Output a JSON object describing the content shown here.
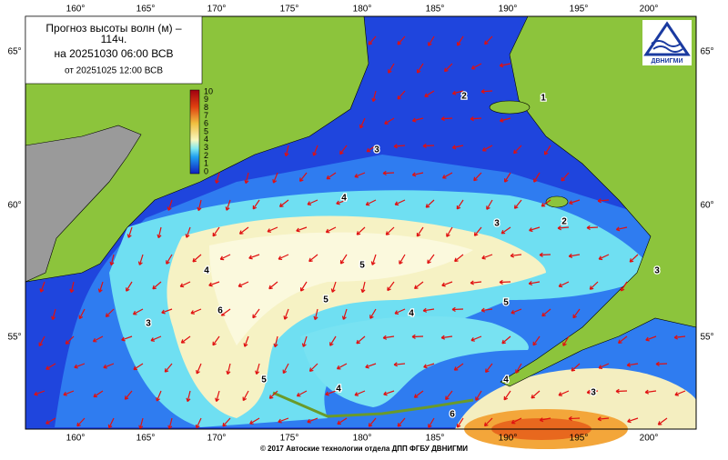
{
  "header": {
    "title_lines": [
      "Прогноз высоты волн (м) –",
      "114ч.",
      "на 20251030 06:00 ВСВ",
      "от 20251025 12:00 ВСВ"
    ]
  },
  "legend": {
    "ticks": [
      "10",
      "9",
      "8",
      "7",
      "6",
      "5",
      "4",
      "3",
      "2",
      "1",
      "0"
    ]
  },
  "axes": {
    "longitudes": [
      "160°",
      "165°",
      "170°",
      "175°",
      "180°",
      "185°",
      "190°",
      "195°",
      "200°"
    ],
    "latitudes": [
      "65°",
      "60°",
      "55°"
    ]
  },
  "contour_labels": [
    "2",
    "1",
    "3",
    "4",
    "3",
    "2",
    "3",
    "4",
    "5",
    "5",
    "6",
    "5",
    "4",
    "3",
    "5",
    "4",
    "4",
    "6",
    "3"
  ],
  "logo": {
    "text": "ДВНИГМИ"
  },
  "footer": {
    "text": "© 2017 Автоские технологии отдела ДПП ФГБУ ДВНИГМИ"
  }
}
